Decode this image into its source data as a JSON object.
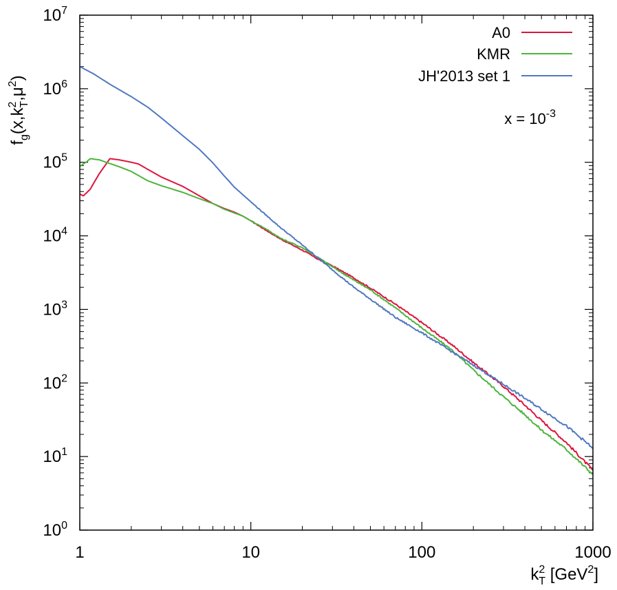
{
  "chart_data": {
    "type": "line",
    "xscale": "log",
    "yscale": "log",
    "xlim": [
      1,
      1000
    ],
    "ylim": [
      1,
      10000000
    ],
    "xticks": [
      {
        "value": 1,
        "label": "1"
      },
      {
        "value": 10,
        "label": "10"
      },
      {
        "value": 100,
        "label": "100"
      },
      {
        "value": 1000,
        "label": "1000"
      }
    ],
    "yticks": [
      {
        "value": 1,
        "base": "10",
        "exp": "0"
      },
      {
        "value": 10,
        "base": "10",
        "exp": "1"
      },
      {
        "value": 100,
        "base": "10",
        "exp": "2"
      },
      {
        "value": 1000,
        "base": "10",
        "exp": "3"
      },
      {
        "value": 10000,
        "base": "10",
        "exp": "4"
      },
      {
        "value": 100000,
        "base": "10",
        "exp": "5"
      },
      {
        "value": 1000000,
        "base": "10",
        "exp": "6"
      },
      {
        "value": 10000000,
        "base": "10",
        "exp": "7"
      }
    ],
    "xlabel": {
      "k": "k",
      "sup": "2",
      "sub": "T",
      "rest": " [GeV",
      "unit_sup": "2",
      "close": "]"
    },
    "ylabel": {
      "f": "f",
      "sub_g": "g",
      "open": "(x,k",
      "sup": "2",
      "sub": "T",
      "mid": ",μ",
      "sup2": "2",
      "close": ")"
    },
    "annotation": {
      "prefix": "x = 10",
      "exp": "-3"
    },
    "legend_position": "top-right",
    "series": [
      {
        "name": "A0",
        "color": "#dc143c",
        "x": [
          1.0,
          1.05,
          1.15,
          1.3,
          1.5,
          1.7,
          2.0,
          2.2,
          2.5,
          3.0,
          4.0,
          5.0,
          6.0,
          7.0,
          8.0,
          9.0,
          10.0,
          12.0,
          15.0,
          20.0,
          25.0,
          30.0,
          40.0,
          50.0,
          70.0,
          100.0,
          150.0,
          200.0,
          300.0,
          400.0,
          500.0,
          700.0,
          1000.0
        ],
        "y": [
          37000,
          35000,
          43000,
          70000,
          112000,
          108000,
          100000,
          95000,
          80000,
          63000,
          47000,
          35000,
          27500,
          23500,
          21000,
          18500,
          16000,
          12300,
          9000,
          6400,
          4750,
          3900,
          2680,
          1950,
          1180,
          660,
          330,
          190,
          90,
          50,
          31,
          15.5,
          6.5
        ]
      },
      {
        "name": "KMR",
        "color": "#4cb43c",
        "x": [
          1.0,
          1.05,
          1.1,
          1.15,
          1.3,
          1.5,
          1.7,
          2.0,
          2.5,
          3.0,
          4.0,
          5.0,
          6.0,
          7.0,
          8.0,
          9.0,
          10.0,
          12.0,
          15.0,
          20.0,
          25.0,
          30.0,
          40.0,
          50.0,
          70.0,
          100.0,
          150.0,
          200.0,
          300.0,
          400.0,
          500.0,
          700.0,
          1000.0
        ],
        "y": [
          88000,
          95000,
          102000,
          112000,
          108000,
          96000,
          87000,
          75000,
          56000,
          48000,
          39000,
          32000,
          27500,
          23000,
          20500,
          18500,
          16000,
          12800,
          9200,
          6900,
          5000,
          3800,
          2500,
          1850,
          1050,
          560,
          280,
          150,
          65,
          37,
          23,
          12.5,
          5.7
        ]
      },
      {
        "name": "JH'2013 set 1",
        "color": "#4f78c1",
        "x": [
          1.0,
          1.2,
          1.5,
          2.0,
          2.5,
          3.0,
          4.0,
          5.0,
          6.0,
          7.0,
          8.0,
          10.0,
          12.0,
          15.0,
          20.0,
          25.0,
          30.0,
          40.0,
          50.0,
          70.0,
          100.0,
          150.0,
          200.0,
          300.0,
          400.0,
          500.0,
          700.0,
          1000.0
        ],
        "y": [
          2000000,
          1600000,
          1150000,
          780000,
          560000,
          400000,
          230000,
          150000,
          98000,
          65000,
          46000,
          29000,
          20000,
          12800,
          7500,
          4900,
          3450,
          2000,
          1380,
          780,
          480,
          265,
          175,
          96,
          62,
          44,
          26,
          13
        ]
      }
    ]
  }
}
